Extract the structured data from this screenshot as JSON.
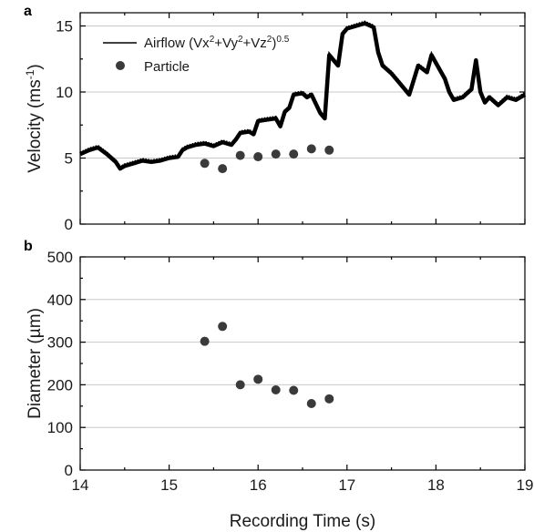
{
  "chart_data": [
    {
      "panel": "a",
      "type": "line",
      "ylabel_main": "Velocity (ms",
      "ylabel_sup": "-1",
      "ylabel_end": ")",
      "xlim": [
        14,
        19
      ],
      "ylim": [
        0,
        16
      ],
      "yticks": [
        "0",
        "5",
        "10",
        "15"
      ],
      "ytick_values": [
        0,
        5,
        10,
        15
      ],
      "grid": true,
      "legend_position": "top-left",
      "series": [
        {
          "name": "Airflow (Vx2+Vy2+Vz2)0.5",
          "legend_parts": [
            "Airflow (Vx",
            "2",
            "+Vy",
            "2",
            "+Vz",
            "2",
            ")",
            "0.5"
          ],
          "kind": "line",
          "color": "#000000",
          "x": [
            14.0,
            14.1,
            14.2,
            14.3,
            14.4,
            14.45,
            14.5,
            14.6,
            14.7,
            14.8,
            14.9,
            15.0,
            15.1,
            15.15,
            15.2,
            15.3,
            15.4,
            15.5,
            15.6,
            15.7,
            15.75,
            15.8,
            15.9,
            15.95,
            16.0,
            16.1,
            16.2,
            16.25,
            16.3,
            16.35,
            16.4,
            16.5,
            16.55,
            16.6,
            16.7,
            16.75,
            16.8,
            16.9,
            16.95,
            17.0,
            17.1,
            17.2,
            17.3,
            17.35,
            17.4,
            17.5,
            17.6,
            17.7,
            17.8,
            17.9,
            17.95,
            18.0,
            18.1,
            18.15,
            18.2,
            18.3,
            18.4,
            18.45,
            18.5,
            18.55,
            18.6,
            18.7,
            18.8,
            18.9,
            19.0
          ],
          "y": [
            5.3,
            5.6,
            5.8,
            5.3,
            4.7,
            4.2,
            4.4,
            4.6,
            4.8,
            4.7,
            4.8,
            5.0,
            5.1,
            5.6,
            5.8,
            6.0,
            6.1,
            5.9,
            6.2,
            6.0,
            6.4,
            6.9,
            7.0,
            6.8,
            7.8,
            7.9,
            8.0,
            7.4,
            8.5,
            8.8,
            9.8,
            9.9,
            9.6,
            9.8,
            8.4,
            8.0,
            12.8,
            12.0,
            14.4,
            14.8,
            15.0,
            15.2,
            14.9,
            13.0,
            12.0,
            11.4,
            10.6,
            9.8,
            12.0,
            11.5,
            12.8,
            12.2,
            11.0,
            10.0,
            9.4,
            9.6,
            10.2,
            12.4,
            10.0,
            9.2,
            9.6,
            9.0,
            9.6,
            9.4,
            9.8
          ]
        },
        {
          "name": "Particle",
          "kind": "scatter",
          "color": "#3a3a3a",
          "x": [
            15.4,
            15.6,
            15.8,
            16.0,
            16.2,
            16.4,
            16.6,
            16.8
          ],
          "y": [
            4.6,
            4.2,
            5.2,
            5.1,
            5.3,
            5.3,
            5.7,
            5.6
          ]
        }
      ]
    },
    {
      "panel": "b",
      "type": "scatter",
      "xlabel": "Recording Time (s)",
      "ylabel": "Diameter (µm)",
      "xlim": [
        14,
        19
      ],
      "ylim": [
        0,
        500
      ],
      "xticks": [
        "14",
        "15",
        "16",
        "17",
        "18",
        "19"
      ],
      "xtick_values": [
        14,
        15,
        16,
        17,
        18,
        19
      ],
      "yticks": [
        "0",
        "100",
        "200",
        "300",
        "400",
        "500"
      ],
      "ytick_values": [
        0,
        100,
        200,
        300,
        400,
        500
      ],
      "grid": true,
      "series": [
        {
          "kind": "scatter",
          "color": "#3a3a3a",
          "x": [
            15.4,
            15.6,
            15.8,
            16.0,
            16.2,
            16.4,
            16.6,
            16.8
          ],
          "y": [
            302,
            337,
            200,
            213,
            188,
            187,
            156,
            167
          ]
        }
      ]
    }
  ]
}
